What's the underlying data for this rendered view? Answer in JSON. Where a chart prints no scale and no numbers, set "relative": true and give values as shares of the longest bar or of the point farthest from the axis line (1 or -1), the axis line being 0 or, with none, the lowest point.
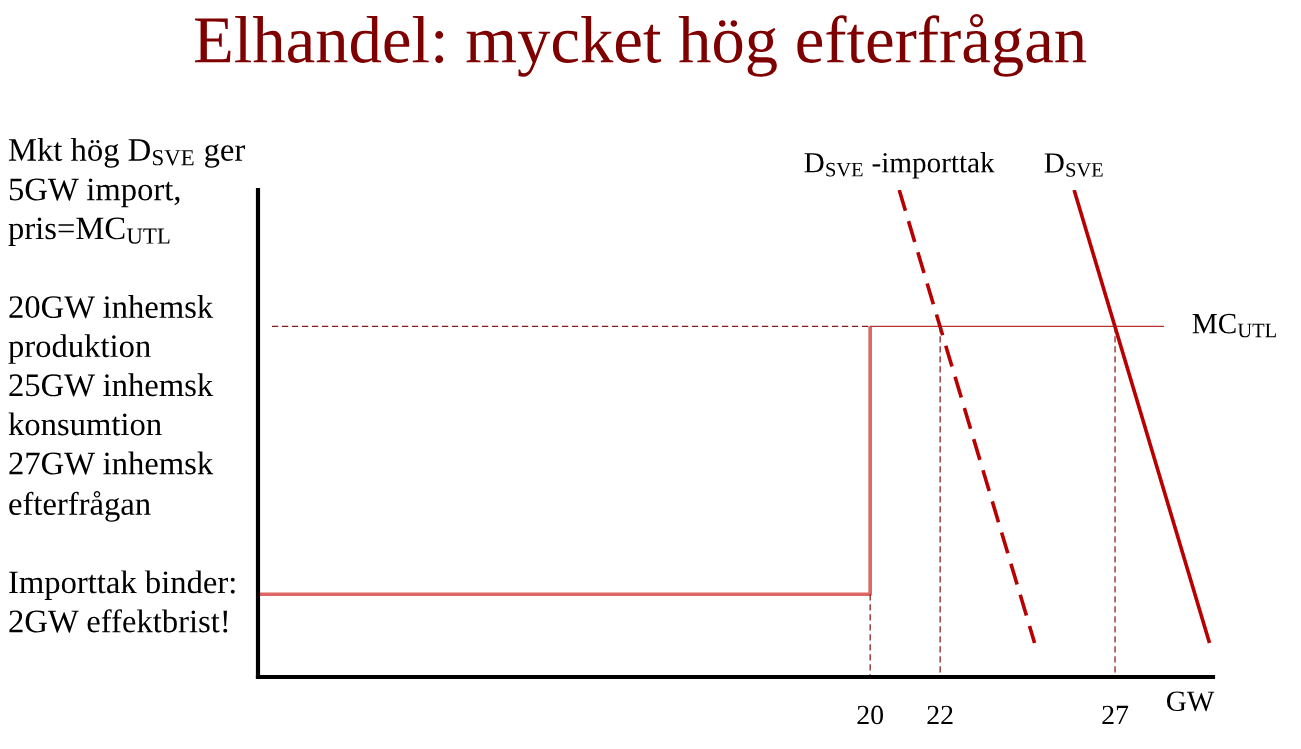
{
  "chart_data": {
    "type": "line",
    "title": "Elhandel: mycket hög efterfrågan",
    "xlabel": "GW",
    "relative": true,
    "xlim": [
      2.5,
      29.8
    ],
    "xticks": [
      20,
      22,
      27
    ],
    "annotations": [
      "Mkt hög D$_{SVE}$ ger\n5GW import,\npris=MC$_{UTL}$\n\n20GW inhemsk\nproduktion\n25GW inhemsk\nkonsumtion\n27GW inhemsk\nefterfrågan\n\nImporttak binder:\n2GW effektbrist!"
    ],
    "series": [
      {
        "color": "#e06666",
        "x": [
          2.5,
          20,
          20
        ],
        "values": [
          0.17,
          0.17,
          0.72
        ]
      },
      {
        "name": "MC$_{UTL}$",
        "color": "#b83232",
        "x": [
          20,
          28.4
        ],
        "values": [
          0.72,
          0.72
        ]
      },
      {
        "name": "D$_{SVE}$ -importtak",
        "color": "#b80000",
        "x": [
          20.83,
          24.7
        ],
        "values": [
          1,
          0.07
        ],
        "line_style": "dashed"
      },
      {
        "name": "D$_{SVE}$",
        "color": "#b80000",
        "x": [
          25.83,
          29.7
        ],
        "values": [
          1,
          0.07
        ]
      },
      {
        "color": "#8b1a1a",
        "x": [
          2.9,
          20
        ],
        "values": [
          0.72,
          0.72
        ],
        "line_style": "dashed"
      },
      {
        "color": "#8b1a1a",
        "x": [
          20,
          20
        ],
        "values": [
          0.17,
          0
        ],
        "line_style": "dashed"
      },
      {
        "color": "#8b1a1a",
        "x": [
          22,
          22
        ],
        "values": [
          0.72,
          0
        ],
        "line_style": "dashed"
      },
      {
        "color": "#8b1a1a",
        "x": [
          27,
          27
        ],
        "values": [
          0.72,
          0
        ],
        "line_style": "dashed"
      }
    ]
  }
}
